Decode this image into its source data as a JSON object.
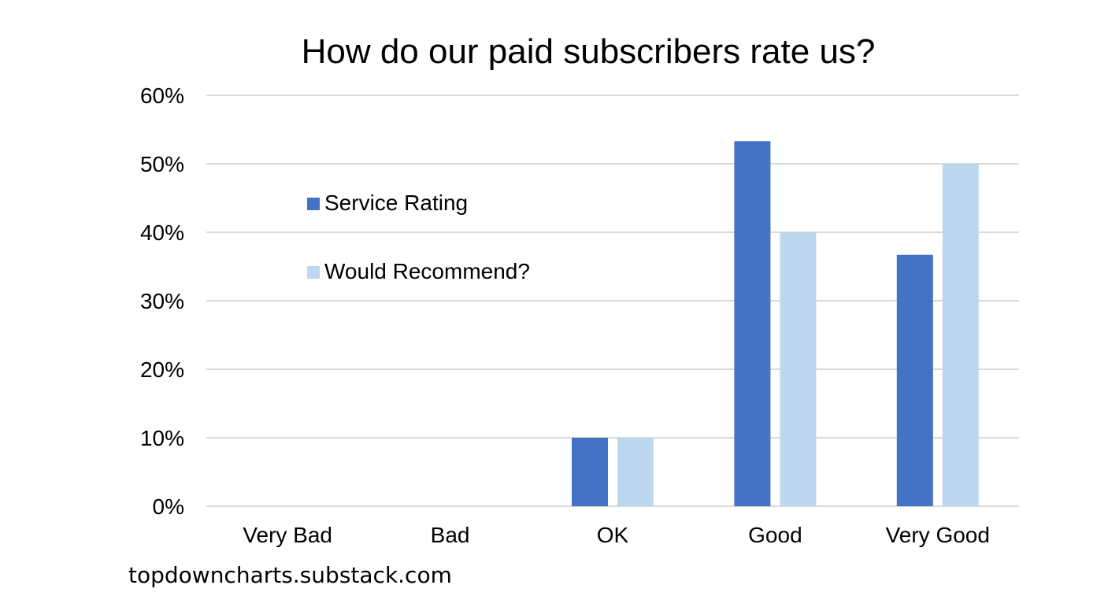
{
  "chart_data": {
    "type": "bar",
    "title": "How do our paid subscribers rate us?",
    "xlabel": "",
    "ylabel": "",
    "categories": [
      "Very Bad",
      "Bad",
      "OK",
      "Good",
      "Very Good"
    ],
    "series": [
      {
        "name": "Service Rating",
        "values": [
          0,
          0,
          10,
          53.3,
          36.7
        ],
        "color": "#4472c4"
      },
      {
        "name": "Would Recommend?",
        "values": [
          0,
          0,
          10,
          40,
          50
        ],
        "color": "#bdd7ee"
      }
    ],
    "ylim": [
      0,
      60
    ],
    "yticks": [
      0,
      10,
      20,
      30,
      40,
      50,
      60
    ],
    "ytick_labels": [
      "0%",
      "10%",
      "20%",
      "30%",
      "40%",
      "50%",
      "60%"
    ],
    "grid": true,
    "legend_position": "upper-left, inside plot"
  },
  "source_note": "topdowncharts.substack.com",
  "colors": {
    "gridline": "#d9d9d9",
    "axis_text": "#000000"
  }
}
